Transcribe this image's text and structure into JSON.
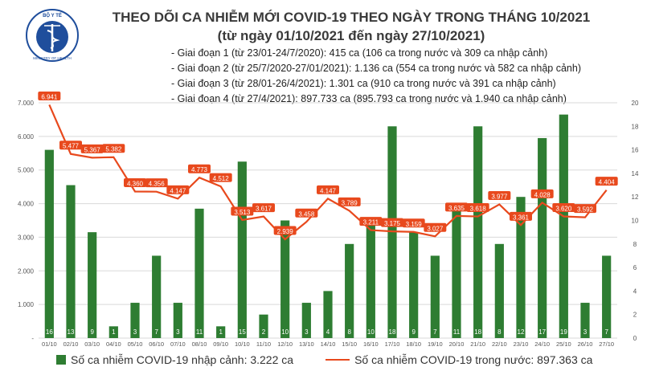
{
  "header": {
    "title_line1": "THEO DÕI CA NHIỄM MỚI COVID-19 THEO NGÀY TRONG THÁNG 10/2021",
    "title_line2": "(từ ngày 01/10/2021 đến ngày 27/10/2021)",
    "logo_text_top": "BỘ Y TẾ",
    "logo_text_bottom": "MINISTRY OF HEALTH"
  },
  "phases": [
    "Giai đoạn 1 (từ 23/01-24/7/2020): 415 ca (106 ca trong nước và 309 ca nhập cảnh)",
    "Giai đoạn 2 (từ 25/7/2020-27/01/2021): 1.136 ca (554 ca trong nước và 582 ca nhập cảnh)",
    "Giai đoạn 3 (từ 28/01-26/4/2021): 1.301 ca (910 ca trong nước và 391 ca nhập cảnh)",
    "Giai đoạn 4 (từ 27/4/2021): 897.733 ca (895.793 ca trong nước và 1.940 ca nhập cảnh)"
  ],
  "legend": {
    "bar_label": "Số ca nhiễm COVID-19 nhập cảnh: 3.222 ca",
    "line_label": "Số ca nhiễm COVID-19 trong nước: 897.363 ca"
  },
  "colors": {
    "bar": "#2e7d32",
    "line": "#e8491d",
    "label_bg": "#e8491d",
    "grid": "#d9d9d9"
  },
  "chart_data": {
    "type": "bar+line",
    "categories": [
      "01/10",
      "02/10",
      "03/10",
      "04/10",
      "05/10",
      "06/10",
      "07/10",
      "08/10",
      "09/10",
      "10/10",
      "11/10",
      "12/10",
      "13/10",
      "14/10",
      "15/10",
      "16/10",
      "17/10",
      "18/10",
      "19/10",
      "20/10",
      "21/10",
      "22/10",
      "23/10",
      "24/10",
      "25/10",
      "26/10",
      "27/10"
    ],
    "series": [
      {
        "name": "Số ca nhiễm COVID-19 nhập cảnh: 3.222 ca",
        "type": "bar",
        "axis": "right",
        "values": [
          16,
          13,
          9,
          1,
          3,
          7,
          3,
          11,
          1,
          15,
          2,
          10,
          3,
          4,
          8,
          10,
          18,
          9,
          7,
          11,
          18,
          8,
          12,
          17,
          19,
          3,
          7
        ]
      },
      {
        "name": "Số ca nhiễm COVID-19 trong nước: 897.363 ca",
        "type": "line",
        "axis": "left",
        "values": [
          6941,
          5477,
          5367,
          5382,
          4360,
          4356,
          4147,
          4773,
          4512,
          3513,
          3617,
          2939,
          3458,
          4147,
          3789,
          3211,
          3175,
          3159,
          3027,
          3635,
          3618,
          3977,
          3361,
          4028,
          3620,
          3592,
          4404
        ],
        "labels": [
          "6.941",
          "5.477",
          "5.367",
          "5.382",
          "4.360",
          "4.356",
          "4.147",
          "4.773",
          "4.512",
          "3.513",
          "3.617",
          "2.939",
          "3.458",
          "4.147",
          "3.789",
          "3.211",
          "3.175",
          "3.159",
          "3.027",
          "3.635",
          "3.618",
          "3.977",
          "3.361",
          "4.028",
          "3.620",
          "3.592",
          "4.404"
        ]
      }
    ],
    "y_left": {
      "min": 0,
      "max": 7000,
      "ticks": [
        "-",
        "1.000",
        "2.000",
        "3.000",
        "4.000",
        "5.000",
        "6.000",
        "7.000"
      ]
    },
    "y_right": {
      "min": 0,
      "max": 20,
      "ticks": [
        "0",
        "2",
        "4",
        "6",
        "8",
        "10",
        "12",
        "14",
        "16",
        "18",
        "20"
      ]
    },
    "grid": true,
    "legend_position": "bottom"
  }
}
